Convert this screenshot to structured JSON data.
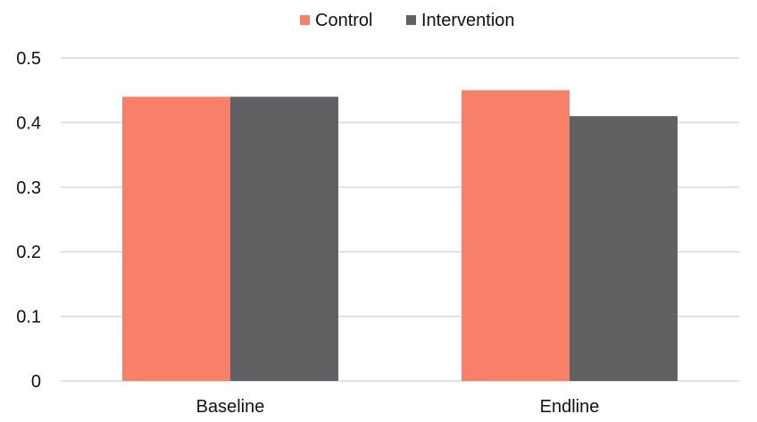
{
  "chart_data": {
    "type": "bar",
    "title": "",
    "xlabel": "",
    "ylabel": "",
    "categories": [
      "Baseline",
      "Endline"
    ],
    "series": [
      {
        "name": "Control",
        "values": [
          0.44,
          0.45
        ],
        "color": "#f88068"
      },
      {
        "name": "Intervention",
        "values": [
          0.44,
          0.41
        ],
        "color": "#616164"
      }
    ],
    "ylim": [
      0,
      0.5
    ],
    "yticks": [
      0,
      0.1,
      0.2,
      0.3,
      0.4,
      0.5
    ],
    "ytick_labels": [
      "0",
      "0.1",
      "0.2",
      "0.3",
      "0.4",
      "0.5"
    ],
    "grid": true,
    "gridline_color": "#d9d9d9",
    "legend_position": "top-center"
  }
}
